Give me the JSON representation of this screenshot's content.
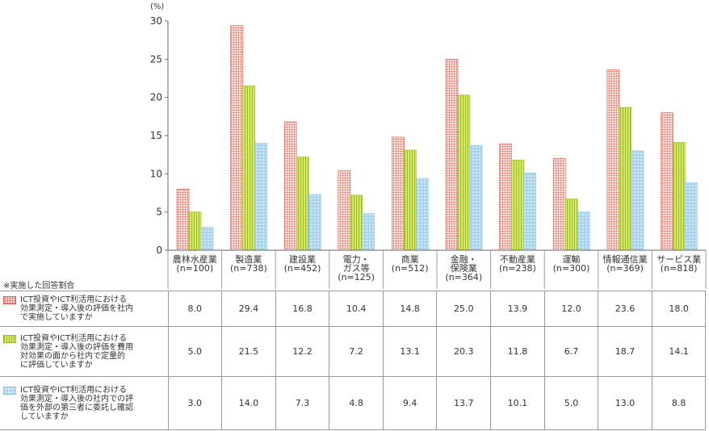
{
  "chart_data": {
    "type": "bar",
    "unit_label": "(%)",
    "ylim": [
      0,
      30
    ],
    "yticks": [
      0,
      5,
      10,
      15,
      20,
      25,
      30
    ],
    "grid": false,
    "categories": [
      "農林水産業\n(n=100)",
      "製造業\n(n=738)",
      "建設業\n(n=452)",
      "電力・\nガス等\n(n=125)",
      "商業\n(n=512)",
      "金融・\n保険業\n(n=364)",
      "不動産業\n(n=238)",
      "運輸\n(n=300)",
      "情報通信業\n(n=369)",
      "サービス業\n(n=818)"
    ],
    "series": [
      {
        "name": "ICT投資やICT利活用における\n効果測定・導入後の評価を社内\nで実施していますか",
        "values": [
          8.0,
          29.4,
          16.8,
          10.4,
          14.8,
          25.0,
          13.9,
          12.0,
          23.6,
          18.0
        ],
        "display": [
          "8.0",
          "29.4",
          "16.8",
          "10.4",
          "14.8",
          "25.0",
          "13.9",
          "12.0",
          "23.6",
          "18.0"
        ],
        "color": "#df5c4c",
        "fill": "#fbe3df"
      },
      {
        "name": "ICT投資やICT利活用における\n効果測定・導入後の評価を費用\n対効果の面から社内で定量的\nに評価していますか",
        "values": [
          5.0,
          21.5,
          12.2,
          7.2,
          13.1,
          20.3,
          11.8,
          6.7,
          18.7,
          14.1
        ],
        "display": [
          "5.0",
          "21.5",
          "12.2",
          "7.2",
          "13.1",
          "20.3",
          "11.8",
          "6.7",
          "18.7",
          "14.1"
        ],
        "color": "#98b928",
        "fill": "#d7ea66"
      },
      {
        "name": "ICT投資やICT利活用における\n効果測定・導入後の社内での評\n価を外部の第三者に委託し確認\nしていますか",
        "values": [
          3.0,
          14.0,
          7.3,
          4.8,
          9.4,
          13.7,
          10.1,
          5.0,
          13.0,
          8.8
        ],
        "display": [
          "3.0",
          "14.0",
          "7.3",
          "4.8",
          "9.4",
          "13.7",
          "10.1",
          "5.0",
          "13.0",
          "8.8"
        ],
        "color": "#8fc4ea",
        "fill": "#a8d4f1"
      }
    ],
    "table_note": "※実施した回答割合"
  }
}
